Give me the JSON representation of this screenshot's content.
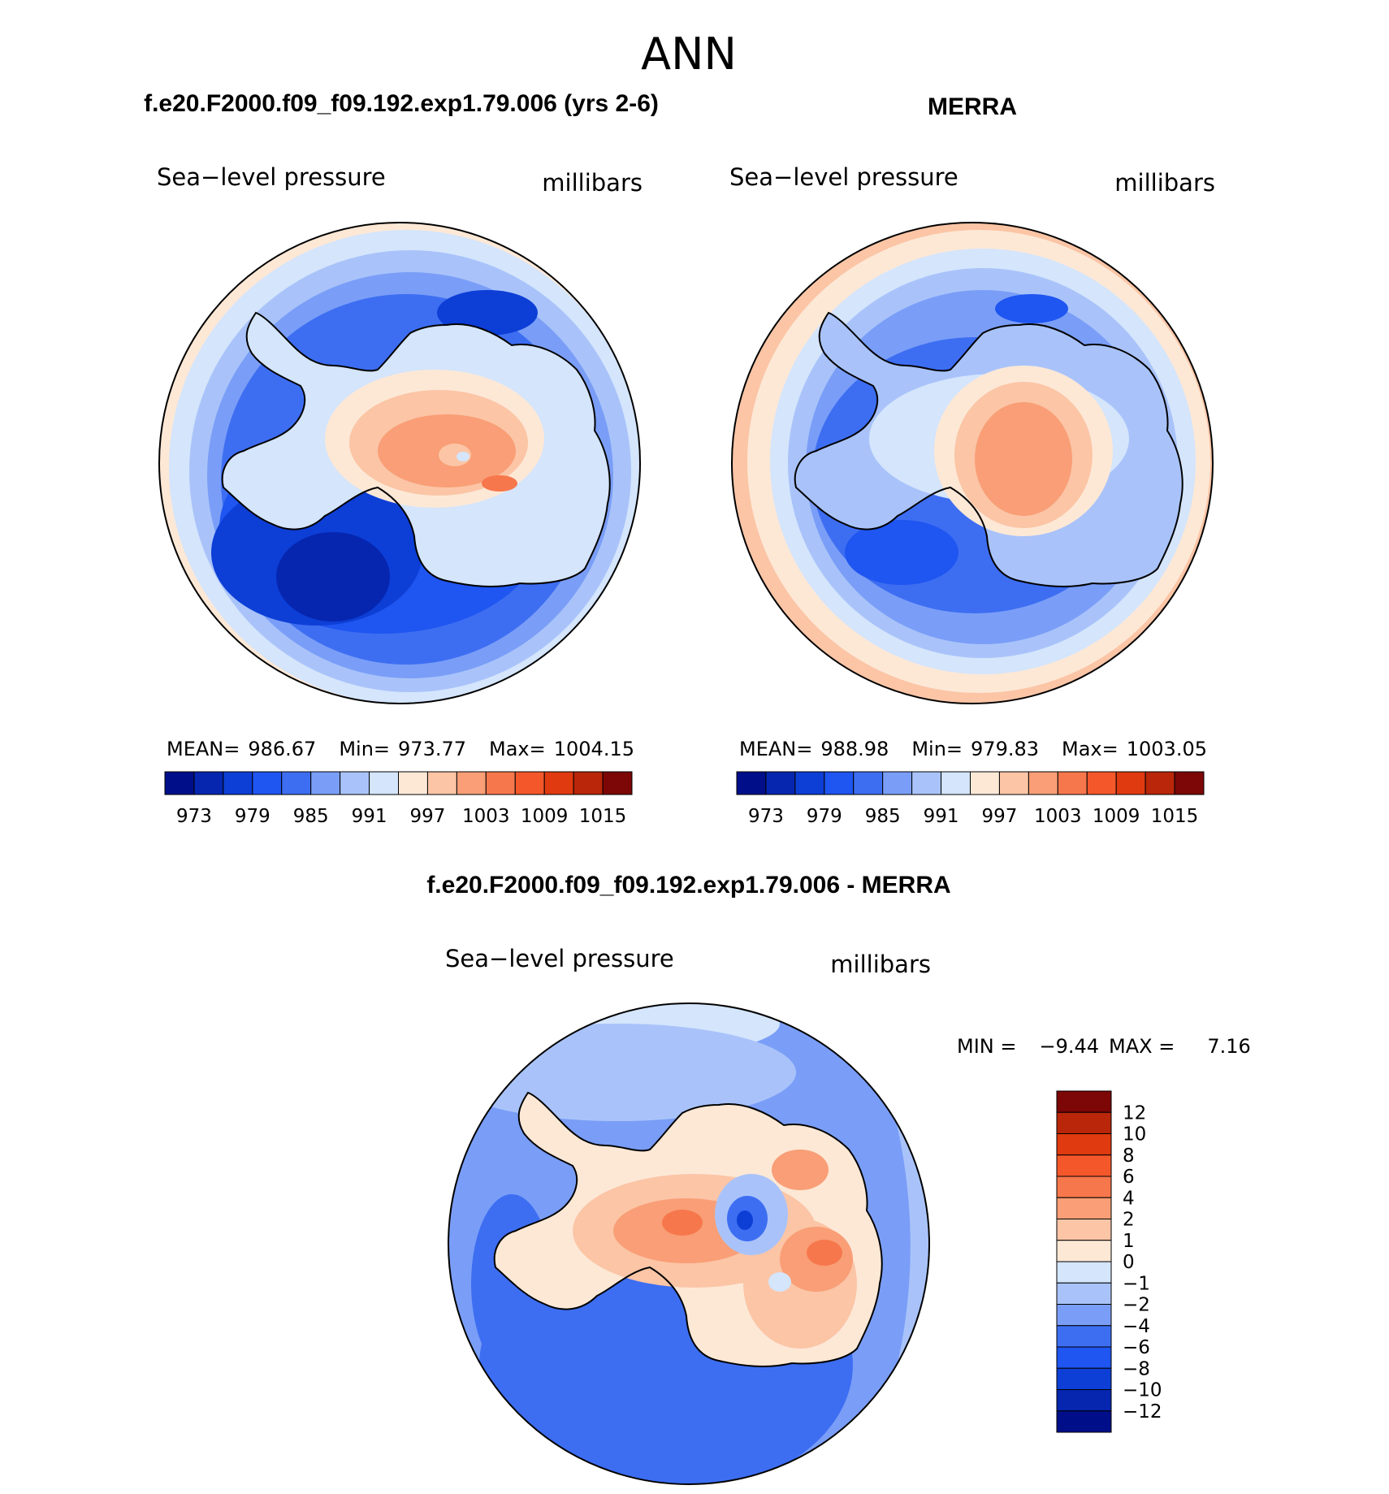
{
  "season": "ANN",
  "panel_model": {
    "title": "f.e20.F2000.f09_f09.192.exp1.79.006 (yrs 2-6)",
    "left_label": "Sea−level pressure",
    "right_label": "millibars",
    "stats": {
      "mean_label": "MEAN=",
      "mean": "986.67",
      "min_label": "Min=",
      "min": "973.77",
      "max_label": "Max=",
      "max": "1004.15"
    }
  },
  "panel_obs": {
    "title": "MERRA",
    "left_label": "Sea−level pressure",
    "right_label": "millibars",
    "stats": {
      "mean_label": "MEAN=",
      "mean": "988.98",
      "min_label": "Min=",
      "min": "979.83",
      "max_label": "Max=",
      "max": "1003.05"
    }
  },
  "panel_diff": {
    "title": "f.e20.F2000.f09_f09.192.exp1.79.006 - MERRA",
    "left_label": "Sea−level pressure",
    "right_label": "millibars",
    "stats": {
      "min_label": "MIN =",
      "min": "−9.44",
      "max_label": "MAX =",
      "max": "7.16"
    }
  },
  "colorbar_main": {
    "colors": [
      "#000f89",
      "#0626b0",
      "#0d3fd6",
      "#1f55f0",
      "#3d6ef2",
      "#7a9ef7",
      "#a9c3fa",
      "#d4e5fc",
      "#fde8d6",
      "#fbc5a6",
      "#f99e76",
      "#f7774c",
      "#f4572a",
      "#e03a10",
      "#b92609",
      "#7d0606"
    ],
    "tick_labels": [
      "973",
      "979",
      "985",
      "991",
      "997",
      "1003",
      "1009",
      "1015"
    ]
  },
  "colorbar_diff": {
    "colors": [
      "#7d0606",
      "#b92609",
      "#e03a10",
      "#f4572a",
      "#f7774c",
      "#f99e76",
      "#fbc5a6",
      "#fde8d6",
      "#d4e5fc",
      "#a9c3fa",
      "#7a9ef7",
      "#3d6ef2",
      "#1f55f0",
      "#0d3fd6",
      "#0626b0",
      "#000f89"
    ],
    "tick_labels": [
      "12",
      "10",
      "8",
      "6",
      "4",
      "2",
      "1",
      "0",
      "−1",
      "−2",
      "−4",
      "−6",
      "−8",
      "−10",
      "−12"
    ]
  }
}
